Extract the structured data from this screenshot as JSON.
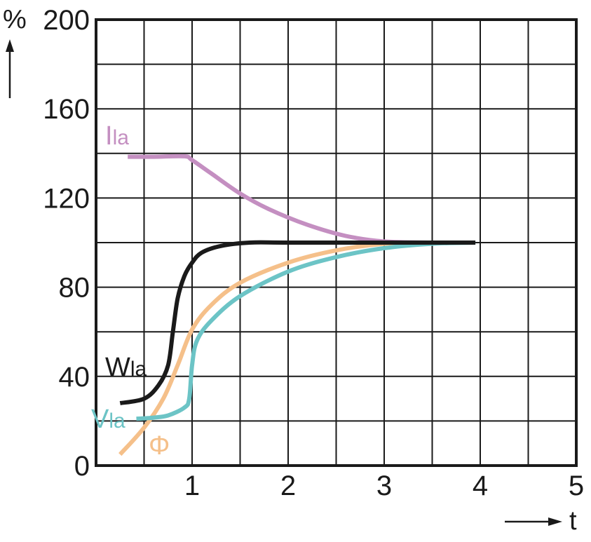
{
  "chart_data": {
    "type": "line",
    "xlabel": "t",
    "ylabel": "%",
    "xlim": [
      0,
      5
    ],
    "ylim": [
      0,
      200
    ],
    "x_ticks": [
      "1",
      "2",
      "3",
      "4",
      "5"
    ],
    "y_ticks": [
      "0",
      "40",
      "80",
      "120",
      "160",
      "200"
    ],
    "grid": true,
    "x_grid_step": 0.5,
    "y_grid_step": 20,
    "series": [
      {
        "name": "Ila",
        "name_parts": [
          "I",
          "la"
        ],
        "color": "#c48fc1",
        "points": [
          [
            0.33,
            138.5
          ],
          [
            0.6,
            138.5
          ],
          [
            0.92,
            138.7
          ],
          [
            1.0,
            137
          ],
          [
            1.2,
            131
          ],
          [
            1.5,
            122
          ],
          [
            1.8,
            115
          ],
          [
            2.2,
            108
          ],
          [
            2.6,
            103
          ],
          [
            3.0,
            100.5
          ],
          [
            3.5,
            100
          ]
        ]
      },
      {
        "name": "Wla",
        "name_parts": [
          "W",
          "la"
        ],
        "color": "#1a1a1a",
        "points": [
          [
            0.25,
            28
          ],
          [
            0.5,
            30
          ],
          [
            0.65,
            36
          ],
          [
            0.75,
            45
          ],
          [
            0.8,
            60
          ],
          [
            0.85,
            75
          ],
          [
            0.92,
            85
          ],
          [
            1.0,
            91
          ],
          [
            1.1,
            95.5
          ],
          [
            1.3,
            98.5
          ],
          [
            1.6,
            100
          ],
          [
            2.0,
            100
          ],
          [
            3.0,
            100
          ],
          [
            3.95,
            100
          ]
        ]
      },
      {
        "name": "Vla",
        "name_parts": [
          "V",
          "la"
        ],
        "color": "#6cc4c6",
        "points": [
          [
            0.42,
            21
          ],
          [
            0.6,
            21.5
          ],
          [
            0.75,
            22.5
          ],
          [
            0.92,
            26
          ],
          [
            0.97,
            30
          ],
          [
            1.0,
            45
          ],
          [
            1.05,
            56
          ],
          [
            1.2,
            65
          ],
          [
            1.5,
            76
          ],
          [
            2.0,
            87
          ],
          [
            2.5,
            93.5
          ],
          [
            3.0,
            97.5
          ],
          [
            3.5,
            99.5
          ],
          [
            3.95,
            100
          ]
        ]
      },
      {
        "name": "Φ",
        "name_parts": [
          "Φ",
          ""
        ],
        "color": "#f5c08a",
        "points": [
          [
            0.25,
            5
          ],
          [
            0.5,
            17
          ],
          [
            0.7,
            30
          ],
          [
            0.85,
            45
          ],
          [
            1.0,
            61
          ],
          [
            1.2,
            72
          ],
          [
            1.5,
            82
          ],
          [
            2.0,
            91
          ],
          [
            2.5,
            96.5
          ],
          [
            3.0,
            99.5
          ],
          [
            3.5,
            100
          ]
        ]
      }
    ]
  }
}
